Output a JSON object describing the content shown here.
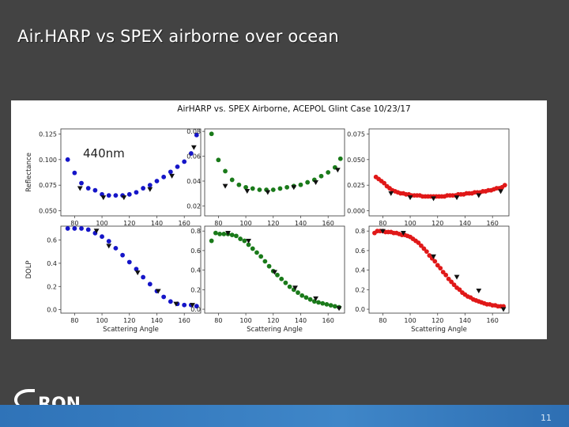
{
  "slide": {
    "title": "Air.HARP vs SPEX airborne over ocean",
    "page_number": "11",
    "logo_text": "RON"
  },
  "figure": {
    "suptitle": "AirHARP vs. SPEX Airborne, ACEPOL Glint Case 10/23/17",
    "overlay_label": "440nm"
  },
  "chart_data": [
    {
      "type": "scatter",
      "panel": "reflectance-blue",
      "color": "#1515c8",
      "ylabel": "Reflectance",
      "xlabel": "",
      "xlim": [
        70,
        172
      ],
      "ylim": [
        0.045,
        0.13
      ],
      "xticks": [
        80,
        100,
        120,
        140,
        160
      ],
      "yticks": [
        0.05,
        0.075,
        0.1,
        0.125
      ],
      "ytick_labels": [
        "0.050",
        "0.075",
        "0.100",
        "0.125"
      ],
      "series": [
        {
          "marker": "circle",
          "x": [
            75,
            80,
            85,
            90,
            95,
            100,
            105,
            110,
            115,
            120,
            125,
            130,
            135,
            140,
            145,
            150,
            155,
            160,
            165,
            169
          ],
          "y": [
            0.1,
            0.087,
            0.077,
            0.072,
            0.07,
            0.066,
            0.065,
            0.065,
            0.065,
            0.066,
            0.068,
            0.072,
            0.075,
            0.079,
            0.083,
            0.088,
            0.093,
            0.098,
            0.106,
            0.124
          ]
        },
        {
          "marker": "triangle",
          "x": [
            84,
            101,
            116,
            135,
            151,
            167
          ],
          "y": [
            0.072,
            0.063,
            0.063,
            0.071,
            0.084,
            0.112
          ]
        }
      ]
    },
    {
      "type": "scatter",
      "panel": "reflectance-green",
      "color": "#1a7a1a",
      "ylabel": "",
      "xlabel": "",
      "xlim": [
        70,
        172
      ],
      "ylim": [
        0.012,
        0.082
      ],
      "xticks": [
        80,
        100,
        120,
        140,
        160
      ],
      "yticks": [
        0.02,
        0.04,
        0.06,
        0.08
      ],
      "ytick_labels": [
        "0.02",
        "0.04",
        "0.06",
        "0.08"
      ],
      "series": [
        {
          "marker": "circle",
          "x": [
            75,
            80,
            85,
            90,
            95,
            100,
            105,
            110,
            115,
            120,
            125,
            130,
            135,
            140,
            145,
            150,
            155,
            160,
            165,
            169
          ],
          "y": [
            0.078,
            0.057,
            0.048,
            0.041,
            0.037,
            0.035,
            0.034,
            0.033,
            0.033,
            0.033,
            0.034,
            0.035,
            0.036,
            0.037,
            0.039,
            0.041,
            0.044,
            0.047,
            0.051,
            0.058
          ]
        },
        {
          "marker": "triangle",
          "x": [
            85,
            101,
            116,
            135,
            151,
            167
          ],
          "y": [
            0.036,
            0.032,
            0.031,
            0.035,
            0.039,
            0.049
          ]
        }
      ]
    },
    {
      "type": "scatter",
      "panel": "reflectance-red",
      "color": "#e01818",
      "ylabel": "",
      "xlabel": "",
      "xlim": [
        70,
        172
      ],
      "ylim": [
        -0.005,
        0.08
      ],
      "xticks": [
        80,
        100,
        120,
        140,
        160
      ],
      "yticks": [
        0.0,
        0.025,
        0.05,
        0.075
      ],
      "ytick_labels": [
        "0.000",
        "0.025",
        "0.050",
        "0.075"
      ],
      "series": [
        {
          "marker": "circle",
          "x": [
            75,
            77,
            79,
            81,
            83,
            85,
            87,
            89,
            91,
            93,
            95,
            97,
            99,
            101,
            103,
            105,
            107,
            109,
            111,
            113,
            115,
            117,
            119,
            121,
            123,
            125,
            127,
            129,
            131,
            133,
            135,
            137,
            139,
            141,
            143,
            145,
            147,
            149,
            151,
            153,
            155,
            157,
            159,
            161,
            163,
            165,
            167,
            169
          ],
          "y": [
            0.033,
            0.031,
            0.029,
            0.027,
            0.024,
            0.022,
            0.02,
            0.019,
            0.018,
            0.017,
            0.017,
            0.016,
            0.016,
            0.015,
            0.015,
            0.015,
            0.015,
            0.014,
            0.014,
            0.014,
            0.014,
            0.014,
            0.014,
            0.014,
            0.014,
            0.014,
            0.015,
            0.015,
            0.015,
            0.015,
            0.016,
            0.016,
            0.016,
            0.017,
            0.017,
            0.017,
            0.018,
            0.018,
            0.018,
            0.019,
            0.019,
            0.02,
            0.02,
            0.021,
            0.022,
            0.022,
            0.023,
            0.025
          ]
        },
        {
          "marker": "triangle",
          "x": [
            86,
            100,
            117,
            134,
            150,
            166
          ],
          "y": [
            0.017,
            0.013,
            0.012,
            0.013,
            0.015,
            0.019
          ]
        }
      ]
    },
    {
      "type": "scatter",
      "panel": "dolp-blue",
      "color": "#1515c8",
      "ylabel": "DOLP",
      "xlabel": "Scattering Angle",
      "xlim": [
        70,
        172
      ],
      "ylim": [
        -0.03,
        0.72
      ],
      "xticks": [
        80,
        100,
        120,
        140,
        160
      ],
      "yticks": [
        0.0,
        0.2,
        0.4,
        0.6
      ],
      "ytick_labels": [
        "0.0",
        "0.2",
        "0.4",
        "0.6"
      ],
      "series": [
        {
          "marker": "circle",
          "x": [
            75,
            80,
            85,
            90,
            95,
            100,
            105,
            110,
            115,
            120,
            125,
            130,
            135,
            140,
            145,
            150,
            155,
            160,
            165,
            169
          ],
          "y": [
            0.7,
            0.7,
            0.7,
            0.69,
            0.66,
            0.63,
            0.59,
            0.53,
            0.47,
            0.41,
            0.35,
            0.28,
            0.22,
            0.16,
            0.11,
            0.07,
            0.05,
            0.04,
            0.04,
            0.03
          ]
        },
        {
          "marker": "triangle",
          "x": [
            96,
            105,
            126,
            141,
            154,
            166
          ],
          "y": [
            0.68,
            0.55,
            0.32,
            0.16,
            0.05,
            0.04
          ]
        }
      ]
    },
    {
      "type": "scatter",
      "panel": "dolp-green",
      "color": "#1a7a1a",
      "ylabel": "",
      "xlabel": "Scattering Angle",
      "xlim": [
        70,
        172
      ],
      "ylim": [
        -0.04,
        0.85
      ],
      "xticks": [
        80,
        100,
        120,
        140,
        160
      ],
      "yticks": [
        0.0,
        0.2,
        0.4,
        0.6,
        0.8
      ],
      "ytick_labels": [
        "0.0",
        "0.2",
        "0.4",
        "0.6",
        "0.8"
      ],
      "series": [
        {
          "marker": "circle",
          "x": [
            75,
            78,
            81,
            84,
            87,
            90,
            93,
            96,
            99,
            102,
            105,
            108,
            111,
            114,
            117,
            120,
            123,
            126,
            129,
            132,
            135,
            138,
            141,
            144,
            147,
            150,
            153,
            156,
            159,
            162,
            165,
            168
          ],
          "y": [
            0.7,
            0.78,
            0.77,
            0.77,
            0.77,
            0.76,
            0.75,
            0.72,
            0.7,
            0.66,
            0.62,
            0.58,
            0.54,
            0.49,
            0.44,
            0.39,
            0.35,
            0.31,
            0.27,
            0.23,
            0.2,
            0.17,
            0.14,
            0.12,
            0.1,
            0.08,
            0.07,
            0.06,
            0.05,
            0.04,
            0.03,
            0.02
          ]
        },
        {
          "marker": "triangle",
          "x": [
            87,
            102,
            121,
            136,
            151,
            168
          ],
          "y": [
            0.78,
            0.7,
            0.38,
            0.22,
            0.11,
            0.01
          ]
        }
      ]
    },
    {
      "type": "scatter",
      "panel": "dolp-red",
      "color": "#e01818",
      "ylabel": "",
      "xlabel": "Scattering Angle",
      "xlim": [
        70,
        172
      ],
      "ylim": [
        -0.04,
        0.85
      ],
      "xticks": [
        80,
        100,
        120,
        140,
        160
      ],
      "yticks": [
        0.0,
        0.2,
        0.4,
        0.6,
        0.8
      ],
      "ytick_labels": [
        "0.0",
        "0.2",
        "0.4",
        "0.6",
        "0.8"
      ],
      "series": [
        {
          "marker": "circle",
          "x": [
            74,
            76,
            78,
            80,
            82,
            84,
            86,
            88,
            90,
            92,
            94,
            96,
            98,
            100,
            102,
            104,
            106,
            108,
            110,
            112,
            114,
            116,
            118,
            120,
            122,
            124,
            126,
            128,
            130,
            132,
            134,
            136,
            138,
            140,
            142,
            144,
            146,
            148,
            150,
            152,
            154,
            156,
            158,
            160,
            162,
            164,
            166,
            168
          ],
          "y": [
            0.78,
            0.8,
            0.8,
            0.8,
            0.79,
            0.79,
            0.79,
            0.78,
            0.78,
            0.77,
            0.76,
            0.76,
            0.75,
            0.74,
            0.72,
            0.7,
            0.68,
            0.65,
            0.62,
            0.59,
            0.55,
            0.52,
            0.49,
            0.45,
            0.42,
            0.38,
            0.35,
            0.31,
            0.28,
            0.25,
            0.22,
            0.2,
            0.17,
            0.15,
            0.13,
            0.12,
            0.1,
            0.09,
            0.08,
            0.07,
            0.06,
            0.05,
            0.05,
            0.04,
            0.04,
            0.03,
            0.03,
            0.03
          ]
        },
        {
          "marker": "triangle",
          "x": [
            80,
            95,
            117,
            134,
            150,
            168
          ],
          "y": [
            0.8,
            0.78,
            0.54,
            0.33,
            0.19,
            0.0
          ]
        }
      ]
    }
  ]
}
